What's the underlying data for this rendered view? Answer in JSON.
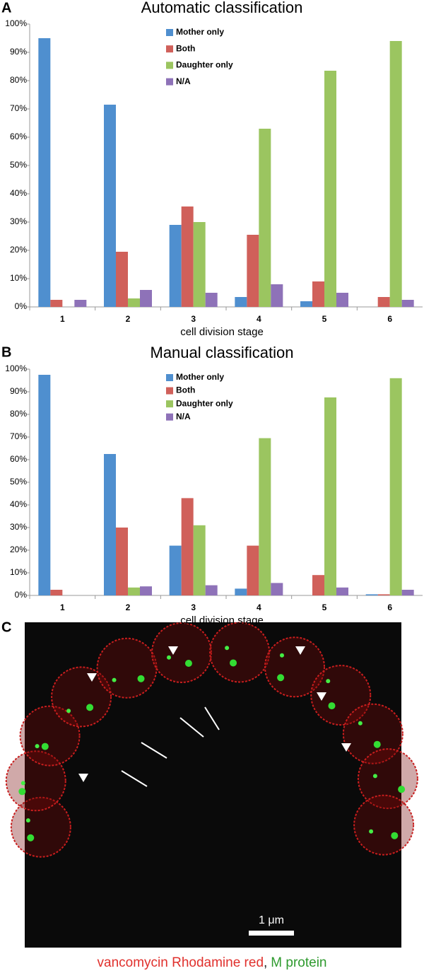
{
  "chart_data": [
    {
      "type": "bar",
      "title": "Automatic classification",
      "x_label": "cell division stage",
      "categories": [
        "1",
        "2",
        "3",
        "4",
        "5",
        "6"
      ],
      "series": [
        {
          "name": "Mother only",
          "color": "#4f8fcf",
          "values": [
            95,
            71.5,
            29,
            3.5,
            2,
            0
          ]
        },
        {
          "name": "Both",
          "color": "#d0605a",
          "values": [
            2.5,
            19.5,
            35.5,
            25.5,
            9,
            3.5
          ]
        },
        {
          "name": "Daughter only",
          "color": "#9bc560",
          "values": [
            0,
            3,
            30,
            63,
            83.5,
            94
          ]
        },
        {
          "name": "N/A",
          "color": "#8e72b8",
          "values": [
            2.5,
            6,
            5,
            8,
            5,
            2.5
          ]
        }
      ],
      "ylim": [
        0,
        100
      ],
      "yticks": [
        {
          "value": 0,
          "label": "0%"
        },
        {
          "value": 10,
          "label": "10%"
        },
        {
          "value": 20,
          "label": "20%"
        },
        {
          "value": 30,
          "label": "30%"
        },
        {
          "value": 40,
          "label": "40%"
        },
        {
          "value": 50,
          "label": "50%"
        },
        {
          "value": 60,
          "label": "60%"
        },
        {
          "value": 70,
          "label": "70%"
        },
        {
          "value": 80,
          "label": "80%"
        },
        {
          "value": 90,
          "label": "90%"
        },
        {
          "value": 100,
          "label": "100%"
        }
      ],
      "grid": false,
      "legend": "top-center"
    },
    {
      "type": "bar",
      "title": "Manual classification",
      "x_label": "cell division stage",
      "categories": [
        "1",
        "2",
        "3",
        "4",
        "5",
        "6"
      ],
      "series": [
        {
          "name": "Mother only",
          "color": "#4f8fcf",
          "values": [
            97.5,
            62.5,
            22,
            3,
            0,
            0.5
          ]
        },
        {
          "name": "Both",
          "color": "#d0605a",
          "values": [
            2.5,
            30,
            43,
            22,
            9,
            0.5
          ]
        },
        {
          "name": "Daughter only",
          "color": "#9bc560",
          "values": [
            0,
            3.5,
            31,
            69.5,
            87.5,
            96
          ]
        },
        {
          "name": "N/A",
          "color": "#8e72b8",
          "values": [
            0,
            4,
            4.5,
            5.5,
            3.5,
            2.5
          ]
        }
      ],
      "ylim": [
        0,
        100
      ],
      "yticks": [
        {
          "value": 0,
          "label": "0%"
        },
        {
          "value": 10,
          "label": "10%"
        },
        {
          "value": 20,
          "label": "20%"
        },
        {
          "value": 30,
          "label": "30%"
        },
        {
          "value": 40,
          "label": "40%"
        },
        {
          "value": 50,
          "label": "50%"
        },
        {
          "value": 60,
          "label": "60%"
        },
        {
          "value": 70,
          "label": "70%"
        },
        {
          "value": 80,
          "label": "80%"
        },
        {
          "value": 90,
          "label": "90%"
        },
        {
          "value": 100,
          "label": "100%"
        }
      ],
      "grid": false,
      "legend": "top-center"
    }
  ],
  "panel_labels": [
    "A",
    "B",
    "C"
  ],
  "micrograph": {
    "scale_bar": "1 μm",
    "caption": [
      "vancomycin Rhodamine red",
      ",",
      "M protein"
    ]
  }
}
